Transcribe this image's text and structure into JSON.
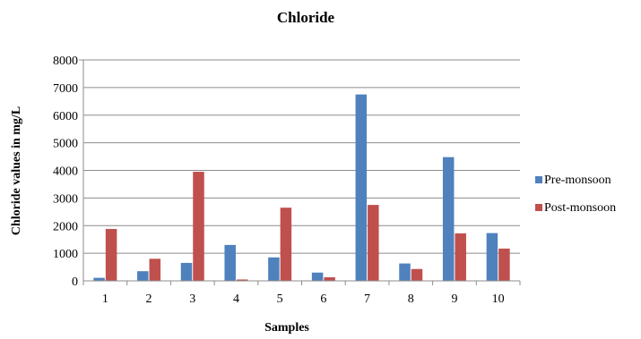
{
  "chart_data": {
    "type": "bar",
    "title": "Chloride",
    "xlabel": "Samples",
    "ylabel": "Chloride values in mg/L",
    "categories": [
      "1",
      "2",
      "3",
      "4",
      "5",
      "6",
      "7",
      "8",
      "9",
      "10"
    ],
    "ylim": [
      0,
      8000
    ],
    "yticks": [
      "0",
      "1000",
      "2000",
      "3000",
      "4000",
      "5000",
      "6000",
      "7000",
      "8000"
    ],
    "grid": true,
    "legend_position": "right",
    "series": [
      {
        "name": "Pre-monsoon",
        "color": "#4f81bd",
        "values": [
          110,
          350,
          650,
          1300,
          850,
          300,
          6750,
          630,
          4480,
          1730
        ]
      },
      {
        "name": "Post-monsoon",
        "color": "#c0504d",
        "values": [
          1880,
          800,
          3950,
          50,
          2650,
          130,
          2750,
          430,
          1720,
          1170
        ]
      }
    ]
  }
}
